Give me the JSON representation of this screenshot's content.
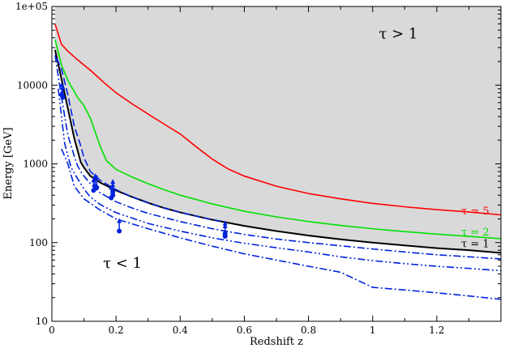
{
  "chart_data": {
    "type": "line",
    "xlabel": "Redshift z",
    "ylabel": "Energy [GeV]",
    "xlim": [
      0,
      1.4
    ],
    "ylim": [
      10,
      100000
    ],
    "yscale": "log",
    "grid": false,
    "x_ticks": [
      {
        "value": 0,
        "label": "0"
      },
      {
        "value": 0.2,
        "label": "0.2"
      },
      {
        "value": 0.4,
        "label": "0.4"
      },
      {
        "value": 0.6,
        "label": "0.6"
      },
      {
        "value": 0.8,
        "label": "0.8"
      },
      {
        "value": 1.0,
        "label": "1"
      },
      {
        "value": 1.2,
        "label": "1.2"
      }
    ],
    "y_ticks": [
      {
        "value": 10,
        "label": "10"
      },
      {
        "value": 100,
        "label": "100"
      },
      {
        "value": 1000,
        "label": "1000"
      },
      {
        "value": 10000,
        "label": "10000"
      },
      {
        "value": 100000,
        "label": "1e+05"
      }
    ],
    "regions": [
      {
        "label": "τ > 1",
        "x": 1.08,
        "y": 45000
      },
      {
        "label": "τ < 1",
        "x": 0.22,
        "y": 55
      }
    ],
    "shaded_region": {
      "description_key": "above tau=1",
      "color": "#d9d9d9"
    },
    "series": [
      {
        "name": "τ = 5",
        "color": "#ff0000",
        "style": "solid",
        "label_x": 1.32,
        "label_y": 250,
        "x": [
          0.01,
          0.03,
          0.05,
          0.08,
          0.12,
          0.16,
          0.2,
          0.25,
          0.3,
          0.35,
          0.4,
          0.45,
          0.5,
          0.55,
          0.6,
          0.7,
          0.8,
          0.9,
          1.0,
          1.1,
          1.2,
          1.3,
          1.4
        ],
        "y": [
          60000,
          33000,
          27000,
          21000,
          15500,
          11000,
          8000,
          5800,
          4300,
          3200,
          2400,
          1650,
          1150,
          860,
          700,
          520,
          420,
          360,
          315,
          285,
          262,
          245,
          225
        ]
      },
      {
        "name": "τ = 2",
        "color": "#00e000",
        "style": "solid",
        "label_x": 1.32,
        "label_y": 135,
        "x": [
          0.01,
          0.03,
          0.05,
          0.08,
          0.1,
          0.12,
          0.15,
          0.17,
          0.2,
          0.25,
          0.3,
          0.35,
          0.4,
          0.5,
          0.6,
          0.7,
          0.8,
          0.9,
          1.0,
          1.1,
          1.2,
          1.3,
          1.4
        ],
        "y": [
          38000,
          18000,
          11500,
          7000,
          5500,
          3800,
          1700,
          1100,
          850,
          680,
          560,
          470,
          400,
          310,
          250,
          212,
          185,
          165,
          150,
          138,
          128,
          120,
          112
        ]
      },
      {
        "name": "τ = 1",
        "color": "#000000",
        "style": "solid",
        "label_x": 1.32,
        "label_y": 96,
        "x": [
          0.01,
          0.03,
          0.05,
          0.07,
          0.09,
          0.1,
          0.12,
          0.15,
          0.2,
          0.25,
          0.3,
          0.35,
          0.4,
          0.5,
          0.6,
          0.7,
          0.8,
          0.9,
          1.0,
          1.1,
          1.2,
          1.3,
          1.4
        ],
        "y": [
          28000,
          12000,
          5000,
          2100,
          1050,
          900,
          700,
          580,
          460,
          380,
          320,
          275,
          242,
          195,
          163,
          140,
          123,
          110,
          100,
          92,
          85,
          80,
          74
        ]
      },
      {
        "name": "",
        "color": "#0022dd",
        "style": "dashed",
        "x": [
          0.015,
          0.03,
          0.05,
          0.07,
          0.09,
          0.1,
          0.12,
          0.15,
          0.2,
          0.25,
          0.3,
          0.35,
          0.4,
          0.5,
          0.54
        ],
        "y": [
          22000,
          16000,
          7500,
          3000,
          1700,
          1200,
          800,
          620,
          470,
          380,
          320,
          275,
          242,
          195,
          182
        ]
      },
      {
        "name": "",
        "color": "#0022dd",
        "style": "dashdot",
        "x": [
          0.01,
          0.03,
          0.05,
          0.07,
          0.08,
          0.09,
          0.1,
          0.12,
          0.15,
          0.2,
          0.25,
          0.3,
          0.4,
          0.5,
          0.6,
          0.7,
          0.8,
          0.9,
          1.0,
          1.1,
          1.2,
          1.3,
          1.4
        ],
        "y": [
          24000,
          7000,
          2300,
          1250,
          950,
          800,
          700,
          560,
          430,
          330,
          275,
          235,
          185,
          150,
          127,
          111,
          100,
          91,
          83,
          76,
          70,
          66,
          62
        ]
      },
      {
        "name": "",
        "color": "#0022dd",
        "style": "dashdotdot",
        "x": [
          0.02,
          0.04,
          0.06,
          0.08,
          0.1,
          0.12,
          0.15,
          0.2,
          0.3,
          0.4,
          0.5,
          0.6,
          0.7,
          0.8,
          0.9,
          1.0,
          1.1,
          1.2,
          1.3,
          1.4
        ],
        "y": [
          9000,
          1800,
          900,
          650,
          480,
          380,
          305,
          240,
          175,
          140,
          115,
          98,
          86,
          76,
          66,
          59,
          54,
          50,
          47,
          44
        ]
      },
      {
        "name": "",
        "color": "#0022dd",
        "style": "dashdot",
        "x": [
          0.03,
          0.05,
          0.07,
          0.1,
          0.15,
          0.2,
          0.3,
          0.4,
          0.5,
          0.6,
          0.7,
          0.8,
          0.9,
          1.0,
          1.1,
          1.2,
          1.3,
          1.4
        ],
        "y": [
          1550,
          1000,
          520,
          360,
          260,
          200,
          150,
          115,
          90,
          72,
          60,
          50,
          42,
          27,
          25,
          23,
          21,
          19
        ]
      }
    ],
    "lower_limits": {
      "color": "#0022dd",
      "points": [
        {
          "x": 0.031,
          "y": 7500
        },
        {
          "x": 0.034,
          "y": 7000
        },
        {
          "x": 0.13,
          "y": 460
        },
        {
          "x": 0.135,
          "y": 520
        },
        {
          "x": 0.14,
          "y": 500
        },
        {
          "x": 0.185,
          "y": 370
        },
        {
          "x": 0.19,
          "y": 400
        },
        {
          "x": 0.19,
          "y": 440
        },
        {
          "x": 0.21,
          "y": 140
        },
        {
          "x": 0.54,
          "y": 120
        },
        {
          "x": 0.54,
          "y": 130
        }
      ]
    }
  }
}
